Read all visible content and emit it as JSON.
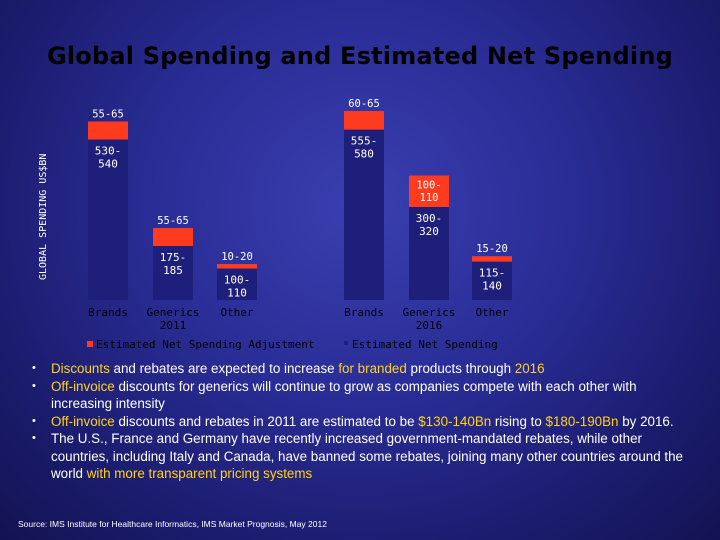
{
  "slide": {
    "title": "Global Spending and Estimated Net Spending"
  },
  "colors": {
    "background": "#23258a",
    "adjustment": "#ff3b1f",
    "net": "#1e1f7a",
    "title": "#000000",
    "highlight": "#ffd21e",
    "text": "#ffffff"
  },
  "chart_data": {
    "type": "bar",
    "stacked": true,
    "ylabel": "GLOBAL SPENDING US$BN",
    "legend": {
      "position": "bottom",
      "entries": [
        "Estimated Net Spending Adjustment",
        "Estimated Net Spending"
      ]
    },
    "groups": [
      {
        "name": "2011",
        "bars": [
          {
            "category": "Brands",
            "net": 535,
            "net_label": "530-540",
            "adjustment": 60,
            "adjustment_label": "55-65"
          },
          {
            "category": "Generics 2011",
            "net": 180,
            "net_label": "175-185",
            "adjustment": 60,
            "adjustment_label": "55-65"
          },
          {
            "category": "Other",
            "net": 105,
            "net_label": "100-110",
            "adjustment": 15,
            "adjustment_label": "10-20"
          }
        ]
      },
      {
        "name": "2016",
        "bars": [
          {
            "category": "Brands",
            "net": 568,
            "net_label": "555-580",
            "adjustment": 62,
            "adjustment_label": "60-65"
          },
          {
            "category": "Generics 2016",
            "net": 310,
            "net_label": "300-320",
            "adjustment": 105,
            "adjustment_label": "100-110"
          },
          {
            "category": "Other",
            "net": 128,
            "net_label": "115-140",
            "adjustment": 18,
            "adjustment_label": "15-20"
          }
        ]
      }
    ]
  },
  "bullets": [
    [
      {
        "t": "Discounts",
        "hl": true
      },
      {
        "t": " and rebates are expected to increase "
      },
      {
        "t": "for branded",
        "hl": true
      },
      {
        "t": " products through "
      },
      {
        "t": "2016",
        "hl": true
      }
    ],
    [
      {
        "t": "Off-invoice",
        "hl": true
      },
      {
        "t": " discounts for generics will continue to grow as companies compete with each other with increasing intensity"
      }
    ],
    [
      {
        "t": "Off-invoice",
        "hl": true
      },
      {
        "t": " discounts and rebates in 2011 are estimated to be "
      },
      {
        "t": "$130-140Bn",
        "hl": true
      },
      {
        "t": " rising to "
      },
      {
        "t": "$180-190Bn",
        "hl": true
      },
      {
        "t": " by 2016."
      }
    ],
    [
      {
        "t": "The U.S., France and Germany have recently increased government-mandated rebates, while other countries, including Italy and Canada, have banned some rebates, joining many other countries around the world "
      },
      {
        "t": "with more transparent pricing systems",
        "hl": true
      }
    ]
  ],
  "source": "Source: IMS Institute for Healthcare Informatics, IMS Market Prognosis, May 2012"
}
